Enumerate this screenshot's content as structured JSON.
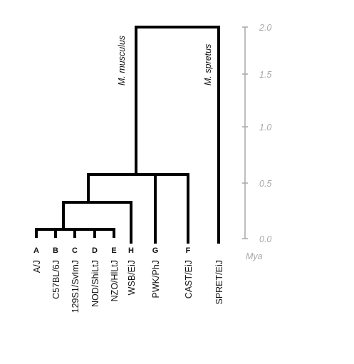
{
  "tree": {
    "leaves": [
      {
        "id": "AJ",
        "letter": "A",
        "name": "A/J"
      },
      {
        "id": "B6",
        "letter": "B",
        "name": "C57BL/6J"
      },
      {
        "id": "129",
        "letter": "C",
        "name": "129S1/SvImJ"
      },
      {
        "id": "NOD",
        "letter": "D",
        "name": "NOD/ShiLtJ"
      },
      {
        "id": "NZO",
        "letter": "E",
        "name": "NZO/HlLtJ"
      },
      {
        "id": "WSB",
        "letter": "H",
        "name": "WSB/EiJ"
      },
      {
        "id": "PWK",
        "letter": "G",
        "name": "PWK/PhJ"
      },
      {
        "id": "CAST",
        "letter": "F",
        "name": "CAST/EiJ"
      },
      {
        "id": "SPRET",
        "letter": "",
        "name": "SPRET/EiJ"
      }
    ],
    "clade_labels": {
      "musculus": "M. musculus",
      "spretus": "M. spretus"
    }
  },
  "axis": {
    "unit": "Mya",
    "ticks": [
      "2.0",
      "1.5",
      "1.0",
      "0.5",
      "0.0"
    ]
  }
}
